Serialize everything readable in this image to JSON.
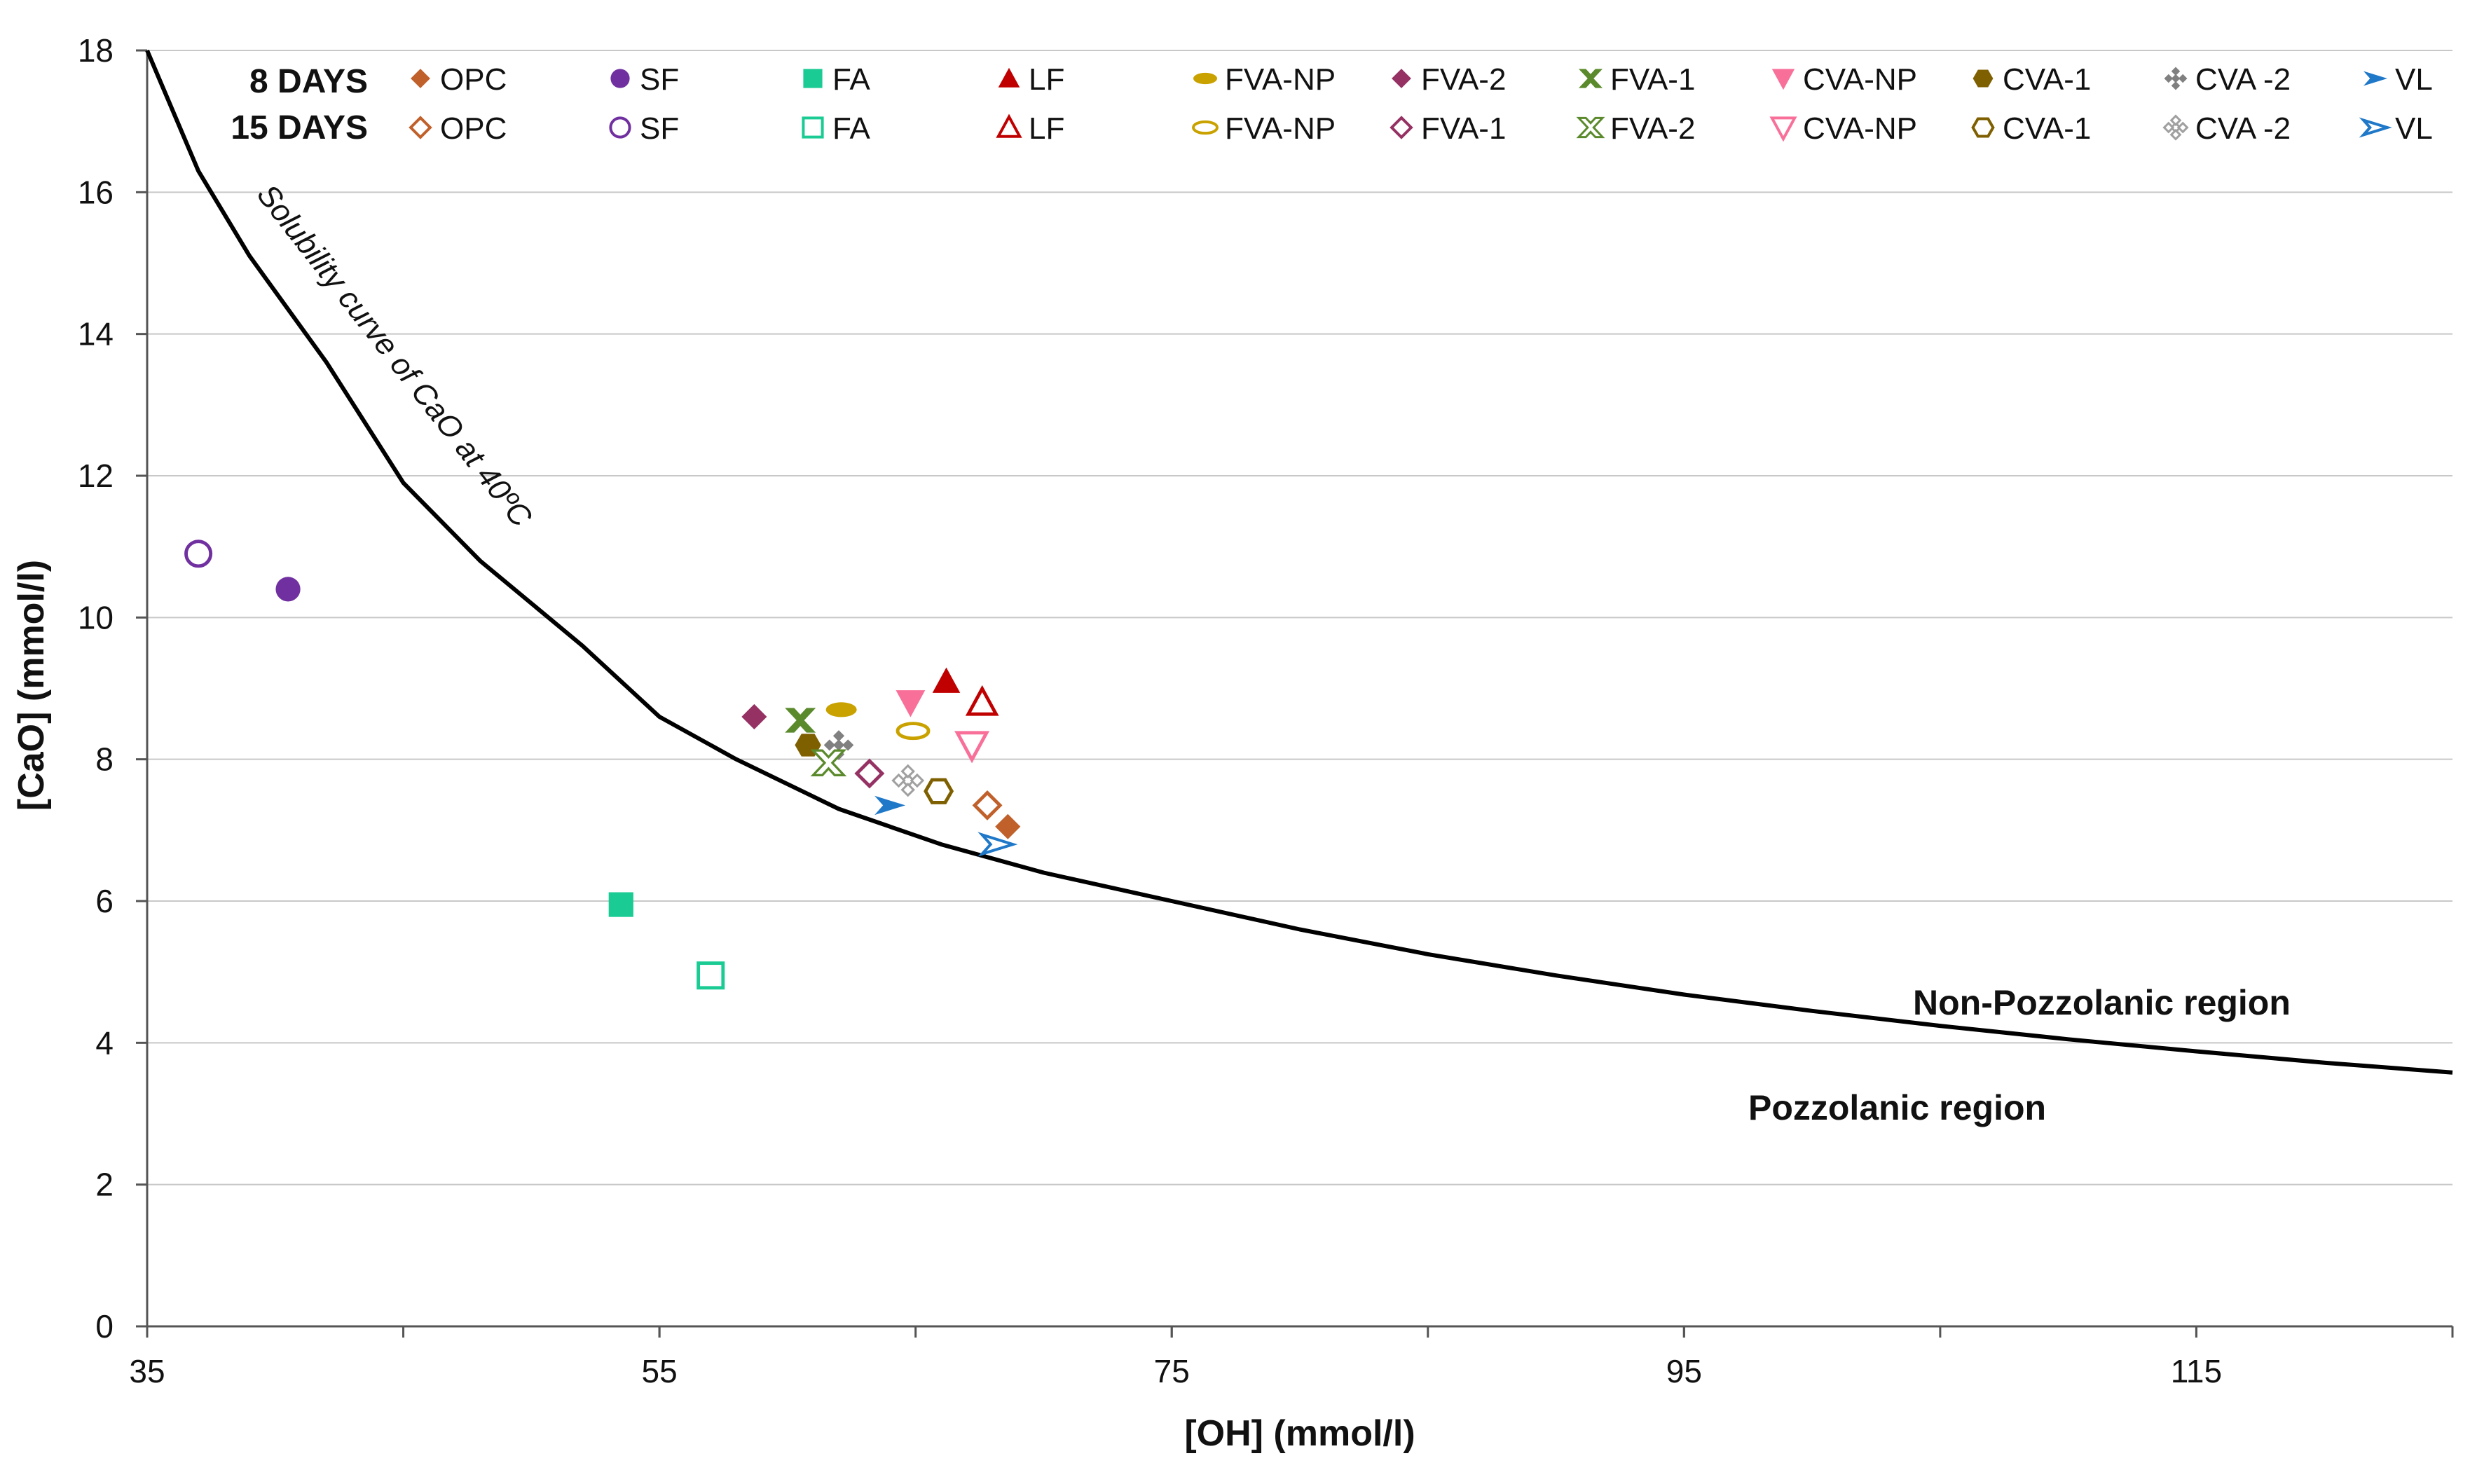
{
  "chart_data": {
    "type": "scatter",
    "xlabel": "[OH] (mmol/l)",
    "ylabel": "[CaO] (mmol/l)",
    "xlim": [
      35,
      125
    ],
    "ylim": [
      0,
      18
    ],
    "x_ticks": [
      "35",
      "55",
      "75",
      "95",
      "115"
    ],
    "y_ticks": [
      "0",
      "2",
      "4",
      "6",
      "8",
      "10",
      "12",
      "14",
      "16",
      "18"
    ],
    "grid": "horizontal",
    "legend_rows": [
      "8 DAYS",
      "15 DAYS"
    ],
    "curve": {
      "label": "Solubility curve of CaO at 40ºC",
      "x": [
        35,
        37,
        39,
        42,
        45,
        48,
        52,
        55,
        58,
        62,
        66,
        70,
        75,
        80,
        85,
        90,
        95,
        100,
        105,
        110,
        115,
        120,
        125
      ],
      "y": [
        18,
        16.3,
        15.1,
        13.6,
        11.9,
        10.8,
        9.6,
        8.6,
        8.0,
        7.3,
        6.8,
        6.4,
        6.0,
        5.6,
        5.25,
        4.95,
        4.68,
        4.45,
        4.24,
        4.05,
        3.88,
        3.72,
        3.58
      ]
    },
    "annotations": [
      "Non-Pozzolanic region",
      "Pozzolanic region"
    ],
    "series": [
      {
        "name": "OPC",
        "age": "8 DAYS",
        "marker": "diamond",
        "filled": true,
        "color": "#C0602A",
        "x": 68.6,
        "y": 7.05
      },
      {
        "name": "SF",
        "age": "8 DAYS",
        "marker": "circle",
        "filled": true,
        "color": "#7030A0",
        "x": 40.5,
        "y": 10.4
      },
      {
        "name": "FA",
        "age": "8 DAYS",
        "marker": "square",
        "filled": true,
        "color": "#1BCB94",
        "x": 53.5,
        "y": 5.95
      },
      {
        "name": "LF",
        "age": "8 DAYS",
        "marker": "triangle-up",
        "filled": true,
        "color": "#C00000",
        "x": 66.2,
        "y": 9.1
      },
      {
        "name": "FVA-NP",
        "age": "8 DAYS",
        "marker": "ellipse",
        "filled": true,
        "color": "#C9A200",
        "x": 62.1,
        "y": 8.7
      },
      {
        "name": "FVA-2",
        "age": "8 DAYS",
        "marker": "diamond",
        "filled": true,
        "color": "#953163",
        "x": 58.7,
        "y": 8.6
      },
      {
        "name": "FVA-1",
        "age": "8 DAYS",
        "marker": "x-mark",
        "filled": true,
        "color": "#5B8A2C",
        "x": 60.5,
        "y": 8.55
      },
      {
        "name": "CVA-NP",
        "age": "8 DAYS",
        "marker": "triangle-down",
        "filled": true,
        "color": "#F8709A",
        "x": 64.8,
        "y": 8.8
      },
      {
        "name": "CVA-1",
        "age": "8 DAYS",
        "marker": "hexagon",
        "filled": true,
        "color": "#7F6000",
        "x": 60.8,
        "y": 8.2
      },
      {
        "name": "CVA -2",
        "age": "8 DAYS",
        "marker": "cross",
        "filled": true,
        "color": "#808080",
        "x": 62.0,
        "y": 8.2
      },
      {
        "name": "VL",
        "age": "8 DAYS",
        "marker": "arrow-right",
        "filled": true,
        "color": "#1F78C8",
        "x": 64.0,
        "y": 7.35
      },
      {
        "name": "OPC",
        "age": "15 DAYS",
        "marker": "diamond",
        "filled": false,
        "color": "#C0602A",
        "x": 67.8,
        "y": 7.35
      },
      {
        "name": "SF",
        "age": "15 DAYS",
        "marker": "circle",
        "filled": false,
        "color": "#7030A0",
        "x": 37.0,
        "y": 10.9
      },
      {
        "name": "FA",
        "age": "15 DAYS",
        "marker": "square",
        "filled": false,
        "color": "#1BCB94",
        "x": 57.0,
        "y": 4.95
      },
      {
        "name": "LF",
        "age": "15 DAYS",
        "marker": "triangle-up",
        "filled": false,
        "color": "#C00000",
        "x": 67.6,
        "y": 8.8
      },
      {
        "name": "FVA-NP",
        "age": "15 DAYS",
        "marker": "ellipse",
        "filled": false,
        "color": "#C9A200",
        "x": 64.9,
        "y": 8.4
      },
      {
        "name": "FVA-1",
        "age": "15 DAYS",
        "marker": "diamond",
        "filled": false,
        "color": "#953163",
        "x": 63.2,
        "y": 7.8
      },
      {
        "name": "FVA-2",
        "age": "15 DAYS",
        "marker": "x-mark",
        "filled": false,
        "color": "#5B8A2C",
        "x": 61.6,
        "y": 7.95
      },
      {
        "name": "CVA-NP",
        "age": "15 DAYS",
        "marker": "triangle-down",
        "filled": false,
        "color": "#F8709A",
        "x": 67.2,
        "y": 8.2
      },
      {
        "name": "CVA-1",
        "age": "15 DAYS",
        "marker": "hexagon",
        "filled": false,
        "color": "#7F6000",
        "x": 65.9,
        "y": 7.55
      },
      {
        "name": "CVA -2",
        "age": "15 DAYS",
        "marker": "cross",
        "filled": false,
        "color": "#A0A0A0",
        "x": 64.7,
        "y": 7.7
      },
      {
        "name": "VL",
        "age": "15 DAYS",
        "marker": "arrow-right",
        "filled": false,
        "color": "#1F78C8",
        "x": 68.2,
        "y": 6.8
      }
    ]
  }
}
